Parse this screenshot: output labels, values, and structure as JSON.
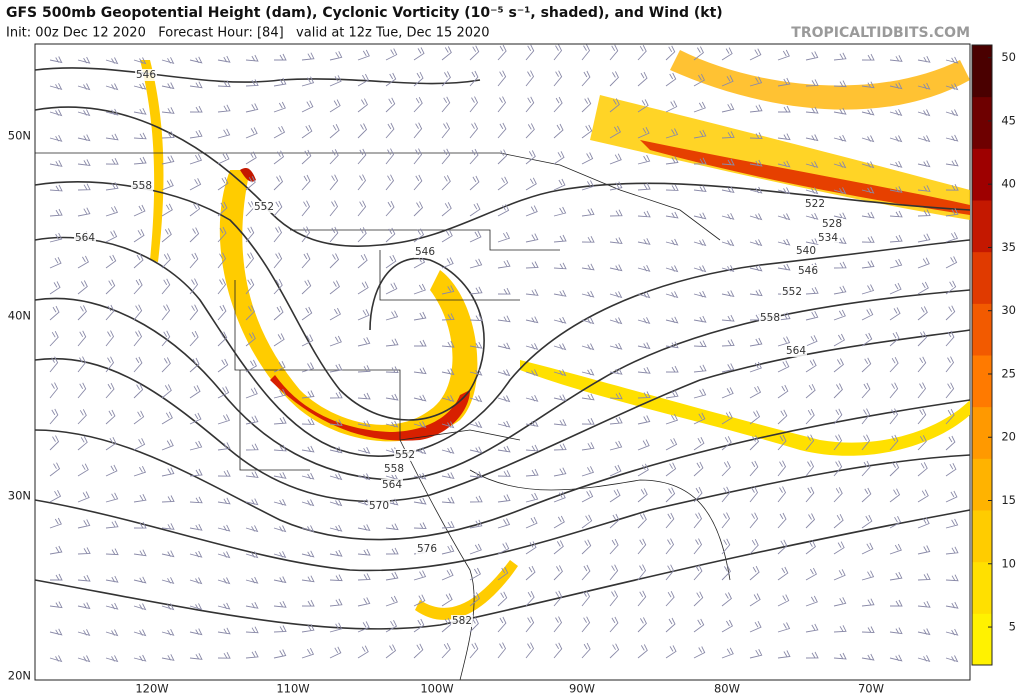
{
  "header": {
    "title": "GFS 500mb Geopotential Height (dam), Cyclonic Vorticity (10⁻⁵ s⁻¹, shaded), and Wind (kt)",
    "init": "Init: 00z Dec 12 2020   Forecast Hour: [84]   valid at 12z Tue, Dec 15 2020",
    "site": "TROPICALTIDBITS.COM"
  },
  "map": {
    "latitude_labels": [
      "50N",
      "40N",
      "30N",
      "20N"
    ],
    "longitude_labels": [
      "120W",
      "110W",
      "100W",
      "90W",
      "80W",
      "70W"
    ],
    "contour_labels": [
      "546",
      "558",
      "552",
      "564",
      "546",
      "522",
      "528",
      "534",
      "540",
      "546",
      "552",
      "558",
      "564",
      "552",
      "558",
      "564",
      "570",
      "576",
      "582"
    ]
  },
  "colorbar": {
    "range": [
      2,
      51
    ],
    "ticks": [
      5,
      10,
      15,
      20,
      25,
      30,
      35,
      40,
      45,
      50
    ],
    "colors": [
      "#fff200",
      "#ffe000",
      "#ffcc00",
      "#ffb300",
      "#ff9900",
      "#ff7a00",
      "#f25a00",
      "#e03a00",
      "#c41800",
      "#9e0000",
      "#6e0000",
      "#4a0000"
    ]
  }
}
